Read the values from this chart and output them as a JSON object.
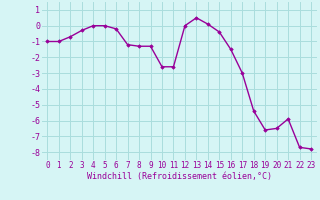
{
  "x": [
    0,
    1,
    2,
    3,
    4,
    5,
    6,
    7,
    8,
    9,
    10,
    11,
    12,
    13,
    14,
    15,
    16,
    17,
    18,
    19,
    20,
    21,
    22,
    23
  ],
  "y": [
    -1.0,
    -1.0,
    -0.7,
    -0.3,
    0.0,
    0.0,
    -0.2,
    -1.2,
    -1.3,
    -1.3,
    -2.6,
    -2.6,
    0.0,
    0.5,
    0.1,
    -0.4,
    -1.5,
    -3.0,
    -5.4,
    -6.6,
    -6.5,
    -5.9,
    -7.7,
    -7.8
  ],
  "line_color": "#990099",
  "marker": "D",
  "marker_size": 1.8,
  "line_width": 1.0,
  "bg_color": "#d6f5f5",
  "grid_color": "#aadddd",
  "xlabel": "Windchill (Refroidissement éolien,°C)",
  "xlabel_color": "#990099",
  "xlabel_fontsize": 6.0,
  "tick_color": "#990099",
  "tick_fontsize": 5.5,
  "ytick_fontsize": 6.0,
  "ylim": [
    -8.5,
    1.5
  ],
  "xlim": [
    -0.5,
    23.5
  ],
  "yticks": [
    -8,
    -7,
    -6,
    -5,
    -4,
    -3,
    -2,
    -1,
    0,
    1
  ],
  "xticks": [
    0,
    1,
    2,
    3,
    4,
    5,
    6,
    7,
    8,
    9,
    10,
    11,
    12,
    13,
    14,
    15,
    16,
    17,
    18,
    19,
    20,
    21,
    22,
    23
  ]
}
